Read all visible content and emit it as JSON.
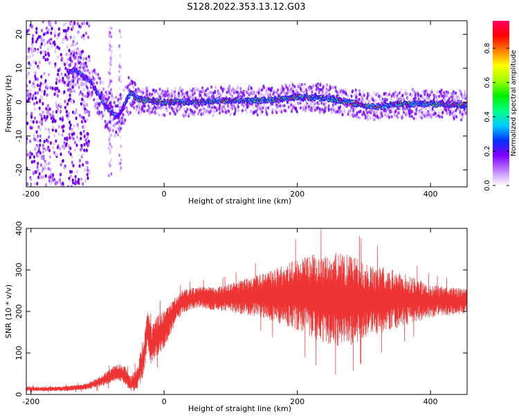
{
  "title": "S128.2022.353.13.12.G03",
  "chart_data": [
    {
      "type": "heatmap",
      "xlabel": "Height of straight line (km)",
      "ylabel": "Frequency (Hz)",
      "xlim": [
        -207,
        455
      ],
      "ylim": [
        -25,
        24
      ],
      "xticks": [
        -200,
        0,
        200,
        400
      ],
      "yticks": [
        20,
        10,
        0,
        -10,
        -20
      ],
      "grid": false,
      "colorbar": {
        "label": "Normalized spectral amplitude",
        "range": [
          0,
          0.96
        ],
        "ticks": [
          "0.0",
          "0.2",
          "0.4",
          "0.6",
          "0.8"
        ],
        "colors": [
          "#ffffff",
          "#c080ff",
          "#8000ff",
          "#0030ff",
          "#00ccff",
          "#00ff80",
          "#00ee00",
          "#a0ff00",
          "#ffff00",
          "#ff8000",
          "#ff0000",
          "#ff0060"
        ]
      },
      "ridge": {
        "x": [
          -130,
          -110,
          -95,
          -85,
          -75,
          -68,
          -60,
          -55,
          -50,
          -40,
          -30,
          0,
          50,
          100,
          150,
          200,
          250,
          300,
          320,
          350,
          400,
          455
        ],
        "y": [
          9,
          6,
          1,
          -2,
          -4,
          -4,
          -1,
          1,
          3,
          1,
          0.5,
          0,
          0,
          0.5,
          0.5,
          1.5,
          1,
          -1,
          -1.5,
          -0.5,
          -0.5,
          -1
        ]
      }
    },
    {
      "type": "line",
      "xlabel": "Height of straight line (km)",
      "ylabel": "SNR (10 * v/v)",
      "xlim": [
        -207,
        455
      ],
      "ylim": [
        0,
        400
      ],
      "xticks": [
        -200,
        0,
        200,
        400
      ],
      "yticks": [
        0,
        100,
        200,
        300,
        400
      ],
      "grid": false,
      "series": [
        {
          "color": "#ee3333",
          "x": [
            -207,
            -180,
            -150,
            -120,
            -100,
            -80,
            -70,
            -60,
            -50,
            -40,
            -30,
            -25,
            -20,
            -10,
            0,
            10,
            20,
            30,
            50,
            80,
            100,
            150,
            200,
            230,
            250,
            280,
            300,
            350,
            400,
            455
          ],
          "y": [
            14,
            13,
            14,
            18,
            28,
            45,
            55,
            48,
            25,
            40,
            95,
            170,
            115,
            145,
            155,
            185,
            210,
            225,
            235,
            230,
            232,
            238,
            240,
            235,
            230,
            228,
            225,
            230,
            225,
            225
          ],
          "spread": [
            6,
            5,
            6,
            7,
            12,
            18,
            20,
            22,
            18,
            30,
            55,
            45,
            50,
            50,
            45,
            38,
            30,
            28,
            25,
            30,
            35,
            55,
            85,
            105,
            115,
            110,
            90,
            70,
            40,
            30
          ]
        }
      ]
    }
  ]
}
